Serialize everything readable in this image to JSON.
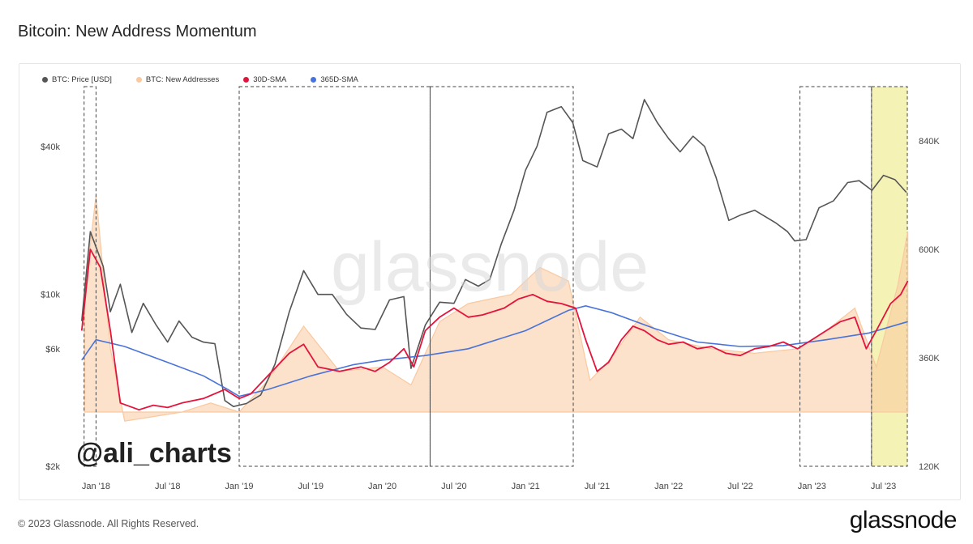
{
  "title": "Bitcoin: New Address Momentum",
  "footer": "© 2023 Glassnode. All Rights Reserved.",
  "brand": "glassnode",
  "watermark": "glassnode",
  "handle": "@ali_charts",
  "colors": {
    "price": "#555555",
    "new_addresses": "#f9c9a0",
    "sma30": "#e3143c",
    "sma365": "#4a73d9",
    "highlight": "#f4f2b4"
  },
  "chart_data": {
    "type": "line",
    "legend": [
      "BTC: Price [USD]",
      "BTC: New Addresses",
      "30D-SMA",
      "365D-SMA"
    ],
    "x_ticks": [
      "Jan '18",
      "Jul '18",
      "Jan '19",
      "Jul '19",
      "Jan '20",
      "Jul '20",
      "Jan '21",
      "Jul '21",
      "Jan '22",
      "Jul '22",
      "Jan '23",
      "Jul '23"
    ],
    "x_range": [
      "2017-11",
      "2023-09"
    ],
    "y_left": {
      "scale": "log",
      "ticks": [
        "$2k",
        "$6k",
        "$10k",
        "$40k"
      ],
      "tick_values": [
        2000,
        6000,
        10000,
        40000
      ],
      "range": [
        2000,
        70000
      ]
    },
    "y_right": {
      "ticks": [
        "120K",
        "360K",
        "600K",
        "840K"
      ],
      "tick_values": [
        120000,
        360000,
        600000,
        840000
      ],
      "range": [
        120000,
        960000
      ]
    },
    "series": [
      {
        "name": "BTC: Price [USD]",
        "axis": "left",
        "points": [
          [
            2017.9,
            7800
          ],
          [
            2017.96,
            18000
          ],
          [
            2018.05,
            13000
          ],
          [
            2018.1,
            8500
          ],
          [
            2018.17,
            11000
          ],
          [
            2018.25,
            7000
          ],
          [
            2018.33,
            9200
          ],
          [
            2018.42,
            7500
          ],
          [
            2018.5,
            6400
          ],
          [
            2018.58,
            7800
          ],
          [
            2018.67,
            6700
          ],
          [
            2018.75,
            6400
          ],
          [
            2018.83,
            6300
          ],
          [
            2018.9,
            3700
          ],
          [
            2018.96,
            3500
          ],
          [
            2019.05,
            3600
          ],
          [
            2019.15,
            3900
          ],
          [
            2019.25,
            5200
          ],
          [
            2019.35,
            8500
          ],
          [
            2019.45,
            12500
          ],
          [
            2019.55,
            10000
          ],
          [
            2019.65,
            10000
          ],
          [
            2019.75,
            8300
          ],
          [
            2019.85,
            7300
          ],
          [
            2019.95,
            7200
          ],
          [
            2020.05,
            9500
          ],
          [
            2020.15,
            9800
          ],
          [
            2020.2,
            5000
          ],
          [
            2020.3,
            7500
          ],
          [
            2020.4,
            9300
          ],
          [
            2020.5,
            9200
          ],
          [
            2020.58,
            11500
          ],
          [
            2020.67,
            10800
          ],
          [
            2020.75,
            11500
          ],
          [
            2020.83,
            16000
          ],
          [
            2020.92,
            22000
          ],
          [
            2021.0,
            32000
          ],
          [
            2021.08,
            40000
          ],
          [
            2021.15,
            55000
          ],
          [
            2021.25,
            58000
          ],
          [
            2021.33,
            50000
          ],
          [
            2021.4,
            35000
          ],
          [
            2021.5,
            33000
          ],
          [
            2021.58,
            45000
          ],
          [
            2021.67,
            47000
          ],
          [
            2021.75,
            43000
          ],
          [
            2021.83,
            62000
          ],
          [
            2021.92,
            50000
          ],
          [
            2022.0,
            43000
          ],
          [
            2022.08,
            38000
          ],
          [
            2022.17,
            44000
          ],
          [
            2022.25,
            40000
          ],
          [
            2022.33,
            30000
          ],
          [
            2022.42,
            20000
          ],
          [
            2022.5,
            21000
          ],
          [
            2022.6,
            22000
          ],
          [
            2022.75,
            19500
          ],
          [
            2022.83,
            18000
          ],
          [
            2022.88,
            16500
          ],
          [
            2022.96,
            16700
          ],
          [
            2023.05,
            22500
          ],
          [
            2023.15,
            24000
          ],
          [
            2023.25,
            28500
          ],
          [
            2023.33,
            29000
          ],
          [
            2023.42,
            26500
          ],
          [
            2023.5,
            30500
          ],
          [
            2023.58,
            29300
          ],
          [
            2023.66,
            26000
          ]
        ]
      },
      {
        "name": "30D-SMA",
        "axis": "right",
        "points": [
          [
            2017.9,
            420000
          ],
          [
            2017.96,
            600000
          ],
          [
            2018.03,
            560000
          ],
          [
            2018.1,
            420000
          ],
          [
            2018.17,
            260000
          ],
          [
            2018.3,
            245000
          ],
          [
            2018.4,
            255000
          ],
          [
            2018.5,
            250000
          ],
          [
            2018.6,
            260000
          ],
          [
            2018.75,
            270000
          ],
          [
            2018.9,
            290000
          ],
          [
            2019.0,
            270000
          ],
          [
            2019.08,
            280000
          ],
          [
            2019.2,
            320000
          ],
          [
            2019.35,
            370000
          ],
          [
            2019.45,
            390000
          ],
          [
            2019.55,
            340000
          ],
          [
            2019.7,
            330000
          ],
          [
            2019.85,
            340000
          ],
          [
            2019.95,
            330000
          ],
          [
            2020.05,
            350000
          ],
          [
            2020.15,
            380000
          ],
          [
            2020.22,
            340000
          ],
          [
            2020.3,
            420000
          ],
          [
            2020.4,
            450000
          ],
          [
            2020.5,
            470000
          ],
          [
            2020.6,
            450000
          ],
          [
            2020.7,
            455000
          ],
          [
            2020.85,
            470000
          ],
          [
            2020.95,
            490000
          ],
          [
            2021.05,
            500000
          ],
          [
            2021.15,
            485000
          ],
          [
            2021.25,
            480000
          ],
          [
            2021.35,
            470000
          ],
          [
            2021.42,
            400000
          ],
          [
            2021.5,
            330000
          ],
          [
            2021.58,
            350000
          ],
          [
            2021.67,
            400000
          ],
          [
            2021.75,
            430000
          ],
          [
            2021.83,
            420000
          ],
          [
            2021.92,
            400000
          ],
          [
            2022.0,
            390000
          ],
          [
            2022.1,
            395000
          ],
          [
            2022.2,
            380000
          ],
          [
            2022.3,
            385000
          ],
          [
            2022.4,
            370000
          ],
          [
            2022.5,
            365000
          ],
          [
            2022.6,
            380000
          ],
          [
            2022.7,
            385000
          ],
          [
            2022.8,
            395000
          ],
          [
            2022.9,
            380000
          ],
          [
            2023.0,
            400000
          ],
          [
            2023.1,
            420000
          ],
          [
            2023.2,
            440000
          ],
          [
            2023.3,
            450000
          ],
          [
            2023.38,
            380000
          ],
          [
            2023.45,
            420000
          ],
          [
            2023.55,
            480000
          ],
          [
            2023.62,
            500000
          ],
          [
            2023.67,
            530000
          ]
        ]
      },
      {
        "name": "365D-SMA",
        "axis": "right",
        "points": [
          [
            2017.9,
            355000
          ],
          [
            2018.0,
            400000
          ],
          [
            2018.2,
            385000
          ],
          [
            2018.5,
            350000
          ],
          [
            2018.75,
            320000
          ],
          [
            2018.92,
            290000
          ],
          [
            2019.0,
            275000
          ],
          [
            2019.2,
            290000
          ],
          [
            2019.5,
            320000
          ],
          [
            2019.8,
            345000
          ],
          [
            2020.0,
            355000
          ],
          [
            2020.3,
            365000
          ],
          [
            2020.6,
            380000
          ],
          [
            2021.0,
            420000
          ],
          [
            2021.3,
            465000
          ],
          [
            2021.42,
            475000
          ],
          [
            2021.6,
            460000
          ],
          [
            2021.9,
            425000
          ],
          [
            2022.2,
            395000
          ],
          [
            2022.5,
            385000
          ],
          [
            2022.8,
            387000
          ],
          [
            2023.1,
            400000
          ],
          [
            2023.4,
            415000
          ],
          [
            2023.67,
            440000
          ]
        ]
      },
      {
        "name": "BTC: New Addresses",
        "axis": "right",
        "points": [
          [
            2017.92,
            500000
          ],
          [
            2018.0,
            720000
          ],
          [
            2018.1,
            380000
          ],
          [
            2018.2,
            220000
          ],
          [
            2018.4,
            230000
          ],
          [
            2018.6,
            240000
          ],
          [
            2018.8,
            260000
          ],
          [
            2019.0,
            240000
          ],
          [
            2019.2,
            310000
          ],
          [
            2019.45,
            430000
          ],
          [
            2019.7,
            330000
          ],
          [
            2020.0,
            340000
          ],
          [
            2020.2,
            300000
          ],
          [
            2020.4,
            440000
          ],
          [
            2020.6,
            480000
          ],
          [
            2020.9,
            500000
          ],
          [
            2021.1,
            560000
          ],
          [
            2021.3,
            530000
          ],
          [
            2021.45,
            310000
          ],
          [
            2021.6,
            360000
          ],
          [
            2021.8,
            450000
          ],
          [
            2022.0,
            400000
          ],
          [
            2022.3,
            380000
          ],
          [
            2022.6,
            370000
          ],
          [
            2022.9,
            380000
          ],
          [
            2023.1,
            420000
          ],
          [
            2023.3,
            470000
          ],
          [
            2023.45,
            340000
          ],
          [
            2023.6,
            520000
          ],
          [
            2023.67,
            640000
          ]
        ]
      }
    ],
    "annotations": {
      "dashed_boxes": [
        [
          "2017-12",
          "2018-01"
        ],
        [
          "2019-01",
          "2020-05"
        ],
        [
          "2020-05",
          "2021-05"
        ],
        [
          "2022-12",
          "2023-06"
        ]
      ],
      "highlight_box": [
        "2023-06",
        "2023-09"
      ]
    }
  }
}
